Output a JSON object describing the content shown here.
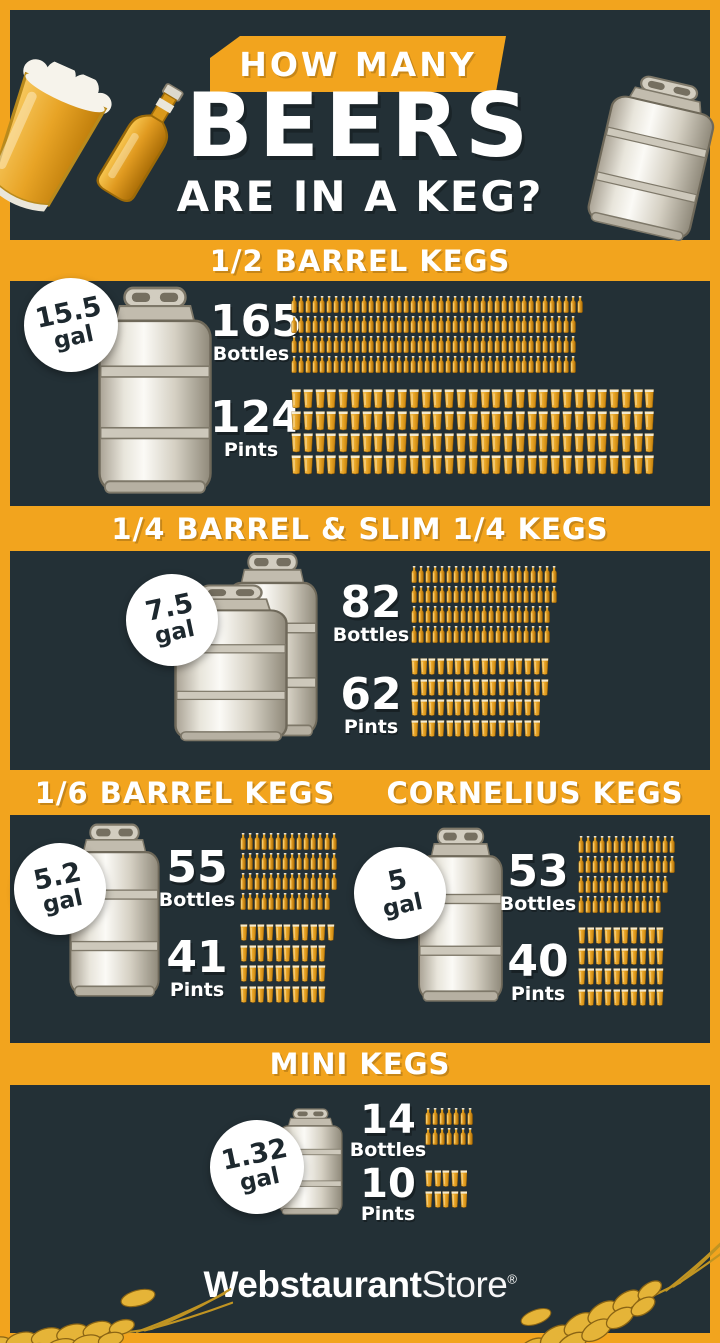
{
  "header": {
    "tag": "HOW MANY",
    "title": "BEERS",
    "subtitle": "ARE IN A KEG?"
  },
  "colors": {
    "accent": "#F2A41E",
    "background": "#233036",
    "badge_text": "#1D282E",
    "bottle_amber": "#E09A20",
    "beer_gold": "#E8A426"
  },
  "sections": [
    {
      "id": "half-barrel",
      "title": "1/2 BARREL KEGS",
      "capacity": {
        "value": "15.5",
        "unit": "gal"
      },
      "bottles": {
        "number": "165",
        "unit": "Bottles",
        "count": 165,
        "icon": "bottle",
        "per_row": [
          42,
          41,
          41,
          41
        ]
      },
      "pints": {
        "number": "124",
        "unit": "Pints",
        "count": 124,
        "icon": "pint",
        "per_row": [
          31,
          31,
          31,
          31
        ]
      }
    },
    {
      "id": "quarter-barrel",
      "title": "1/4 BARREL & SLIM 1/4 KEGS",
      "capacity": {
        "value": "7.5",
        "unit": "gal"
      },
      "bottles": {
        "number": "82",
        "unit": "Bottles",
        "count": 82,
        "icon": "bottle",
        "per_row": [
          21,
          21,
          20,
          20
        ]
      },
      "pints": {
        "number": "62",
        "unit": "Pints",
        "count": 62,
        "icon": "pint",
        "per_row": [
          16,
          16,
          15,
          15
        ]
      }
    },
    {
      "id": "sixth-barrel",
      "title": "1/6 BARREL KEGS",
      "capacity": {
        "value": "5.2",
        "unit": "gal"
      },
      "bottles": {
        "number": "55",
        "unit": "Bottles",
        "count": 55,
        "icon": "bottle",
        "per_row": [
          14,
          14,
          14,
          13
        ]
      },
      "pints": {
        "number": "41",
        "unit": "Pints",
        "count": 41,
        "icon": "pint",
        "per_row": [
          11,
          10,
          10,
          10
        ]
      }
    },
    {
      "id": "cornelius",
      "title": "CORNELIUS KEGS",
      "capacity": {
        "value": "5",
        "unit": "gal"
      },
      "bottles": {
        "number": "53",
        "unit": "Bottles",
        "count": 53,
        "icon": "bottle",
        "per_row": [
          14,
          14,
          13,
          12
        ]
      },
      "pints": {
        "number": "40",
        "unit": "Pints",
        "count": 40,
        "icon": "pint",
        "per_row": [
          10,
          10,
          10,
          10
        ]
      }
    },
    {
      "id": "mini",
      "title": "MINI KEGS",
      "capacity": {
        "value": "1.32",
        "unit": "gal"
      },
      "bottles": {
        "number": "14",
        "unit": "Bottles",
        "count": 14,
        "icon": "bottle",
        "per_row": [
          7,
          7
        ]
      },
      "pints": {
        "number": "10",
        "unit": "Pints",
        "count": 10,
        "icon": "pint",
        "per_row": [
          5,
          5
        ]
      }
    }
  ],
  "footer": {
    "brand_bold": "Webstaurant",
    "brand_light": "Store",
    "registered": "®"
  }
}
